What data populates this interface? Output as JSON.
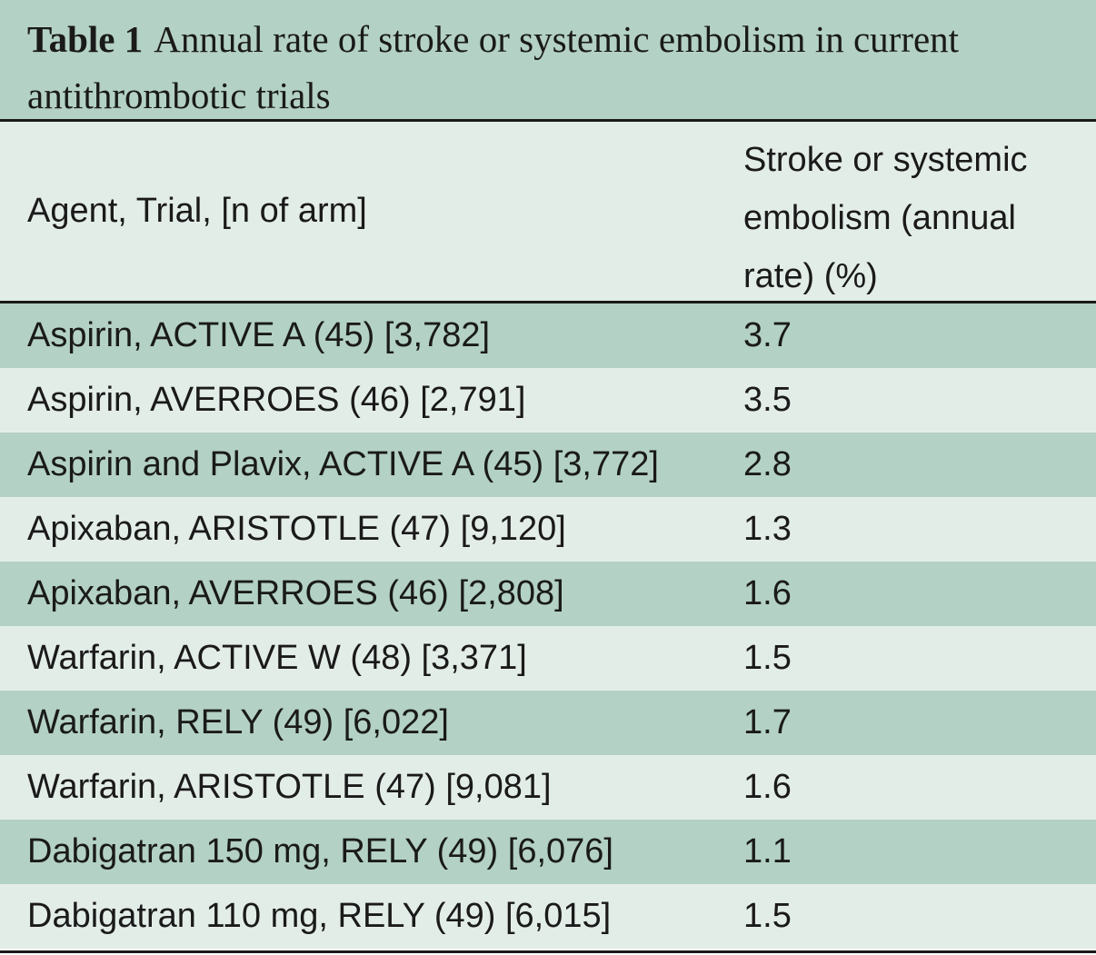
{
  "table": {
    "caption_label": "Table 1",
    "caption_text": "Annual rate of stroke or systemic embolism in current antithrombotic trials",
    "headers": {
      "col1": "Agent, Trial, [n of arm]",
      "col2": "Stroke or systemic embolism (annual rate) (%)"
    },
    "rows": [
      {
        "agent": "Aspirin, ACTIVE A (45) [3,782]",
        "rate": "3.7"
      },
      {
        "agent": "Aspirin, AVERROES (46) [2,791]",
        "rate": "3.5"
      },
      {
        "agent": "Aspirin and Plavix, ACTIVE A (45) [3,772]",
        "rate": "2.8"
      },
      {
        "agent": "Apixaban, ARISTOTLE (47) [9,120]",
        "rate": "1.3"
      },
      {
        "agent": "Apixaban, AVERROES (46) [2,808]",
        "rate": "1.6"
      },
      {
        "agent": "Warfarin, ACTIVE W (48) [3,371]",
        "rate": "1.5"
      },
      {
        "agent": "Warfarin, RELY (49) [6,022]",
        "rate": "1.7"
      },
      {
        "agent": "Warfarin, ARISTOTLE (47) [9,081]",
        "rate": "1.6"
      },
      {
        "agent": "Dabigatran 150 mg, RELY (49) [6,076]",
        "rate": "1.1"
      },
      {
        "agent": "Dabigatran 110 mg, RELY (49) [6,015]",
        "rate": "1.5"
      }
    ]
  },
  "colors": {
    "dark_band": "#b3d1c4",
    "light_band": "#e3ede8",
    "rule": "#1a1a1a"
  }
}
